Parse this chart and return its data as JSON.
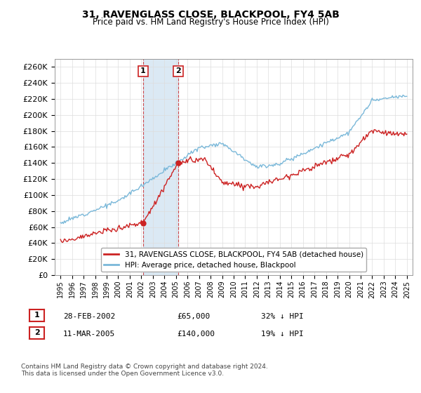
{
  "title": "31, RAVENGLASS CLOSE, BLACKPOOL, FY4 5AB",
  "subtitle": "Price paid vs. HM Land Registry's House Price Index (HPI)",
  "legend_line1": "31, RAVENGLASS CLOSE, BLACKPOOL, FY4 5AB (detached house)",
  "legend_line2": "HPI: Average price, detached house, Blackpool",
  "purchase1_date": "28-FEB-2002",
  "purchase1_price": 65000,
  "purchase1_label": "32% ↓ HPI",
  "purchase2_date": "11-MAR-2005",
  "purchase2_price": 140000,
  "purchase2_label": "19% ↓ HPI",
  "footnote": "Contains HM Land Registry data © Crown copyright and database right 2024.\nThis data is licensed under the Open Government Licence v3.0.",
  "hpi_color": "#7ab8d9",
  "price_color": "#cc2222",
  "shading_color": "#cce0f0",
  "marker1_x": 2002.15,
  "marker1_y": 65000,
  "marker2_x": 2005.2,
  "marker2_y": 140000,
  "vline1_x": 2002.15,
  "vline2_x": 2005.2,
  "ylim_min": 0,
  "ylim_max": 270000,
  "xlim_min": 1994.5,
  "xlim_max": 2025.5,
  "yticks": [
    0,
    20000,
    40000,
    60000,
    80000,
    100000,
    120000,
    140000,
    160000,
    180000,
    200000,
    220000,
    240000,
    260000
  ],
  "xtick_years": [
    1995,
    1996,
    1997,
    1998,
    1999,
    2000,
    2001,
    2002,
    2003,
    2004,
    2005,
    2006,
    2007,
    2008,
    2009,
    2010,
    2011,
    2012,
    2013,
    2014,
    2015,
    2016,
    2017,
    2018,
    2019,
    2020,
    2021,
    2022,
    2023,
    2024,
    2025
  ]
}
